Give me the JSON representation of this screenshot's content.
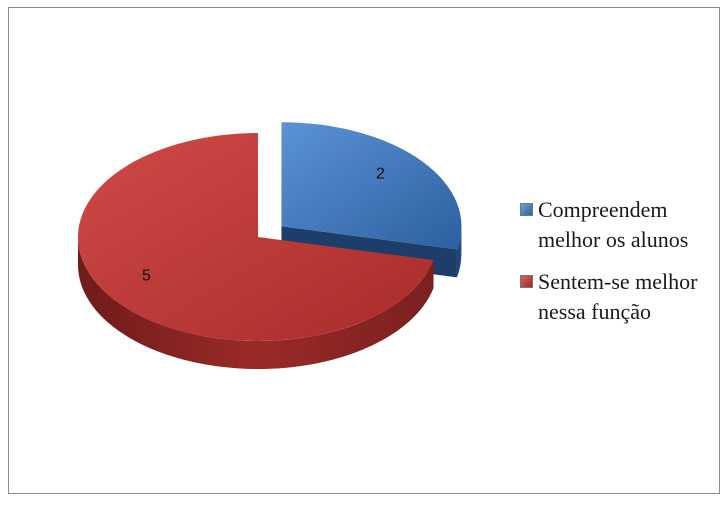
{
  "chart_data": {
    "type": "pie",
    "style": "3d-exploded",
    "title": "",
    "categories": [
      "Compreendem melhor os alunos",
      "Sentem-se melhor nessa função"
    ],
    "values": [
      2,
      5
    ],
    "colors": [
      "#3f74bb",
      "#b93a37"
    ],
    "data_labels": [
      "2",
      "5"
    ],
    "legend": {
      "position": "right",
      "entries": [
        {
          "line1": "Compreendem",
          "line2": "melhor os alunos"
        },
        {
          "line1": "Sentem-se melhor",
          "line2": "nessa função"
        }
      ]
    }
  }
}
